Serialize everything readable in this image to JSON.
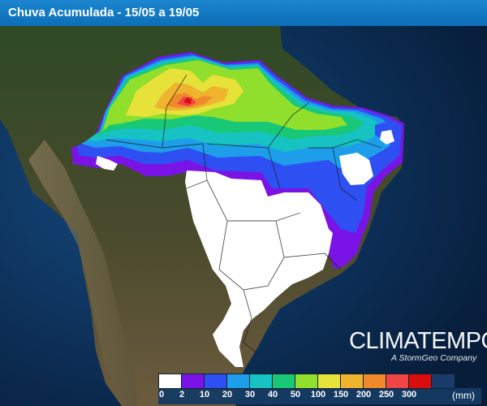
{
  "title": "Chuva Acumulada - 15/05 a 19/05",
  "brand": {
    "name": "CLIMATEMPO",
    "tagline": "A StormGeo Company"
  },
  "legend": {
    "unit": "(mm)",
    "ticks": [
      "0",
      "2",
      "10",
      "20",
      "30",
      "40",
      "50",
      "100",
      "150",
      "200",
      "250",
      "300"
    ],
    "colors": [
      "#ffffff",
      "#7a14e6",
      "#2e4ff2",
      "#1e9eea",
      "#16c2c2",
      "#19c877",
      "#8fdf2c",
      "#e7e23a",
      "#efb32d",
      "#ef8a2a",
      "#ef4448",
      "#d90d0d",
      "#1a3a6a"
    ]
  },
  "map": {
    "ocean_color": "#0d3465",
    "land_color": "#3c4a2a",
    "heaviest_rain_color": "#d9201e",
    "dry_area_color": "#ffffff"
  }
}
